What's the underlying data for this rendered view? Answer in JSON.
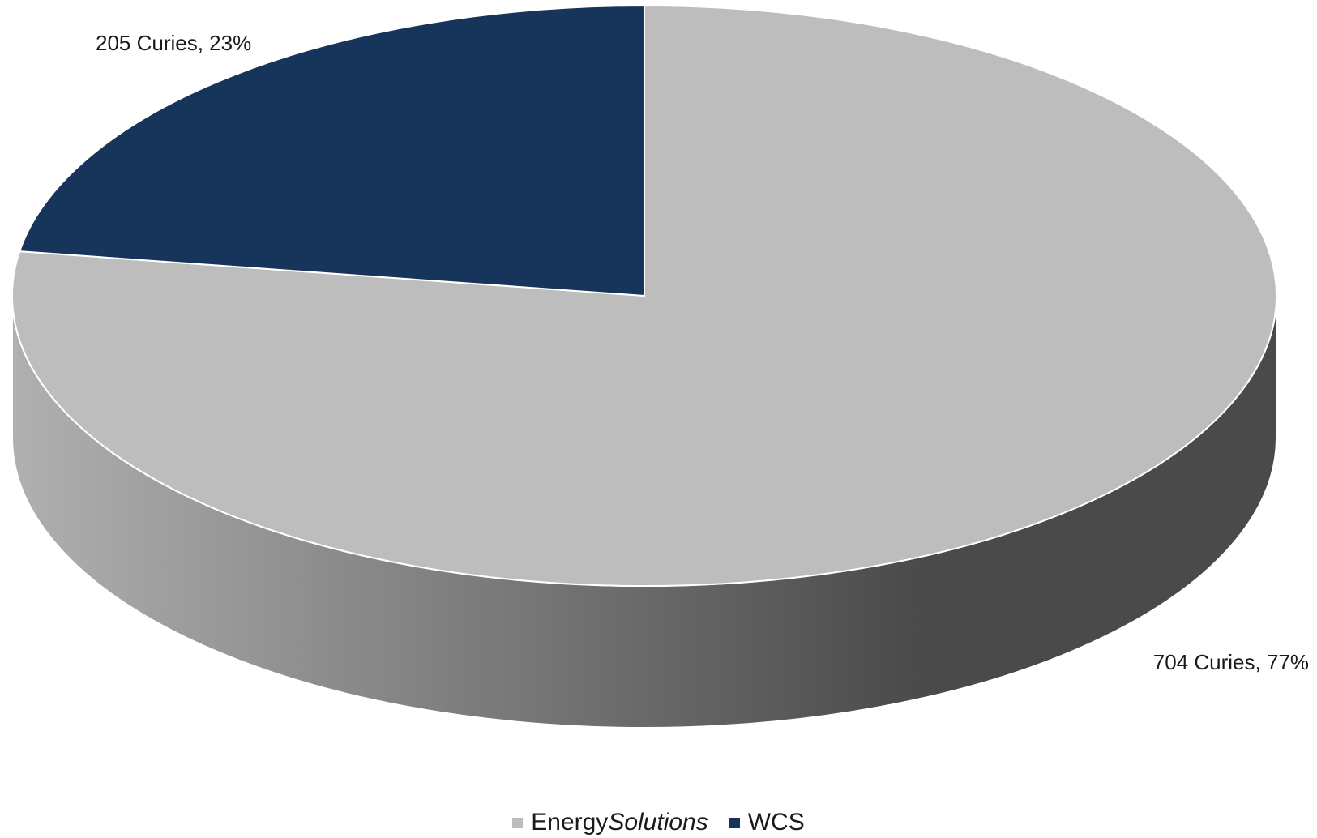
{
  "chart_data": {
    "type": "pie",
    "style": "3d",
    "slices": [
      {
        "name": "EnergySolutions",
        "name_parts": [
          "Energy",
          "Solutions"
        ],
        "value": 704,
        "percent": 77,
        "label": "704 Curies, 77%",
        "color": "#bdbdbd"
      },
      {
        "name": "WCS",
        "name_parts": [
          "WCS",
          ""
        ],
        "value": 205,
        "percent": 23,
        "label": "205 Curies, 23%",
        "color": "#17355a"
      }
    ],
    "legend_position": "bottom"
  }
}
